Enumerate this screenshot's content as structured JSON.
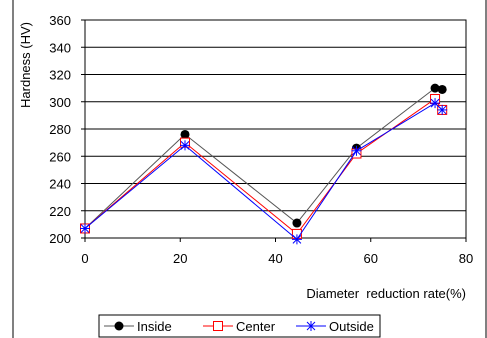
{
  "chart_data": {
    "type": "line",
    "xlabel": "Diameter  reduction rate(%)",
    "ylabel": "Hardness (HV)",
    "xlim": [
      0,
      80
    ],
    "ylim": [
      200,
      360
    ],
    "xticks": [
      0,
      20,
      40,
      60,
      80
    ],
    "yticks": [
      200,
      220,
      240,
      260,
      280,
      300,
      320,
      340,
      360
    ],
    "grid": "horizontal",
    "legend_position": "bottom",
    "series": [
      {
        "name": "Inside",
        "marker": "filled-circle",
        "color": "#555555",
        "x": [
          0,
          21,
          44.5,
          57,
          73.5,
          75
        ],
        "y": [
          207,
          276,
          211,
          266,
          310,
          309
        ]
      },
      {
        "name": "Center",
        "marker": "open-square",
        "color": "#ff0000",
        "x": [
          0,
          21,
          44.5,
          57,
          73.5,
          75
        ],
        "y": [
          207,
          270,
          203,
          262,
          302,
          294
        ]
      },
      {
        "name": "Outside",
        "marker": "asterisk",
        "color": "#0000ff",
        "x": [
          0,
          21,
          44.5,
          57,
          73.5,
          75
        ],
        "y": [
          207,
          268,
          199,
          264,
          299,
          294
        ]
      }
    ]
  }
}
